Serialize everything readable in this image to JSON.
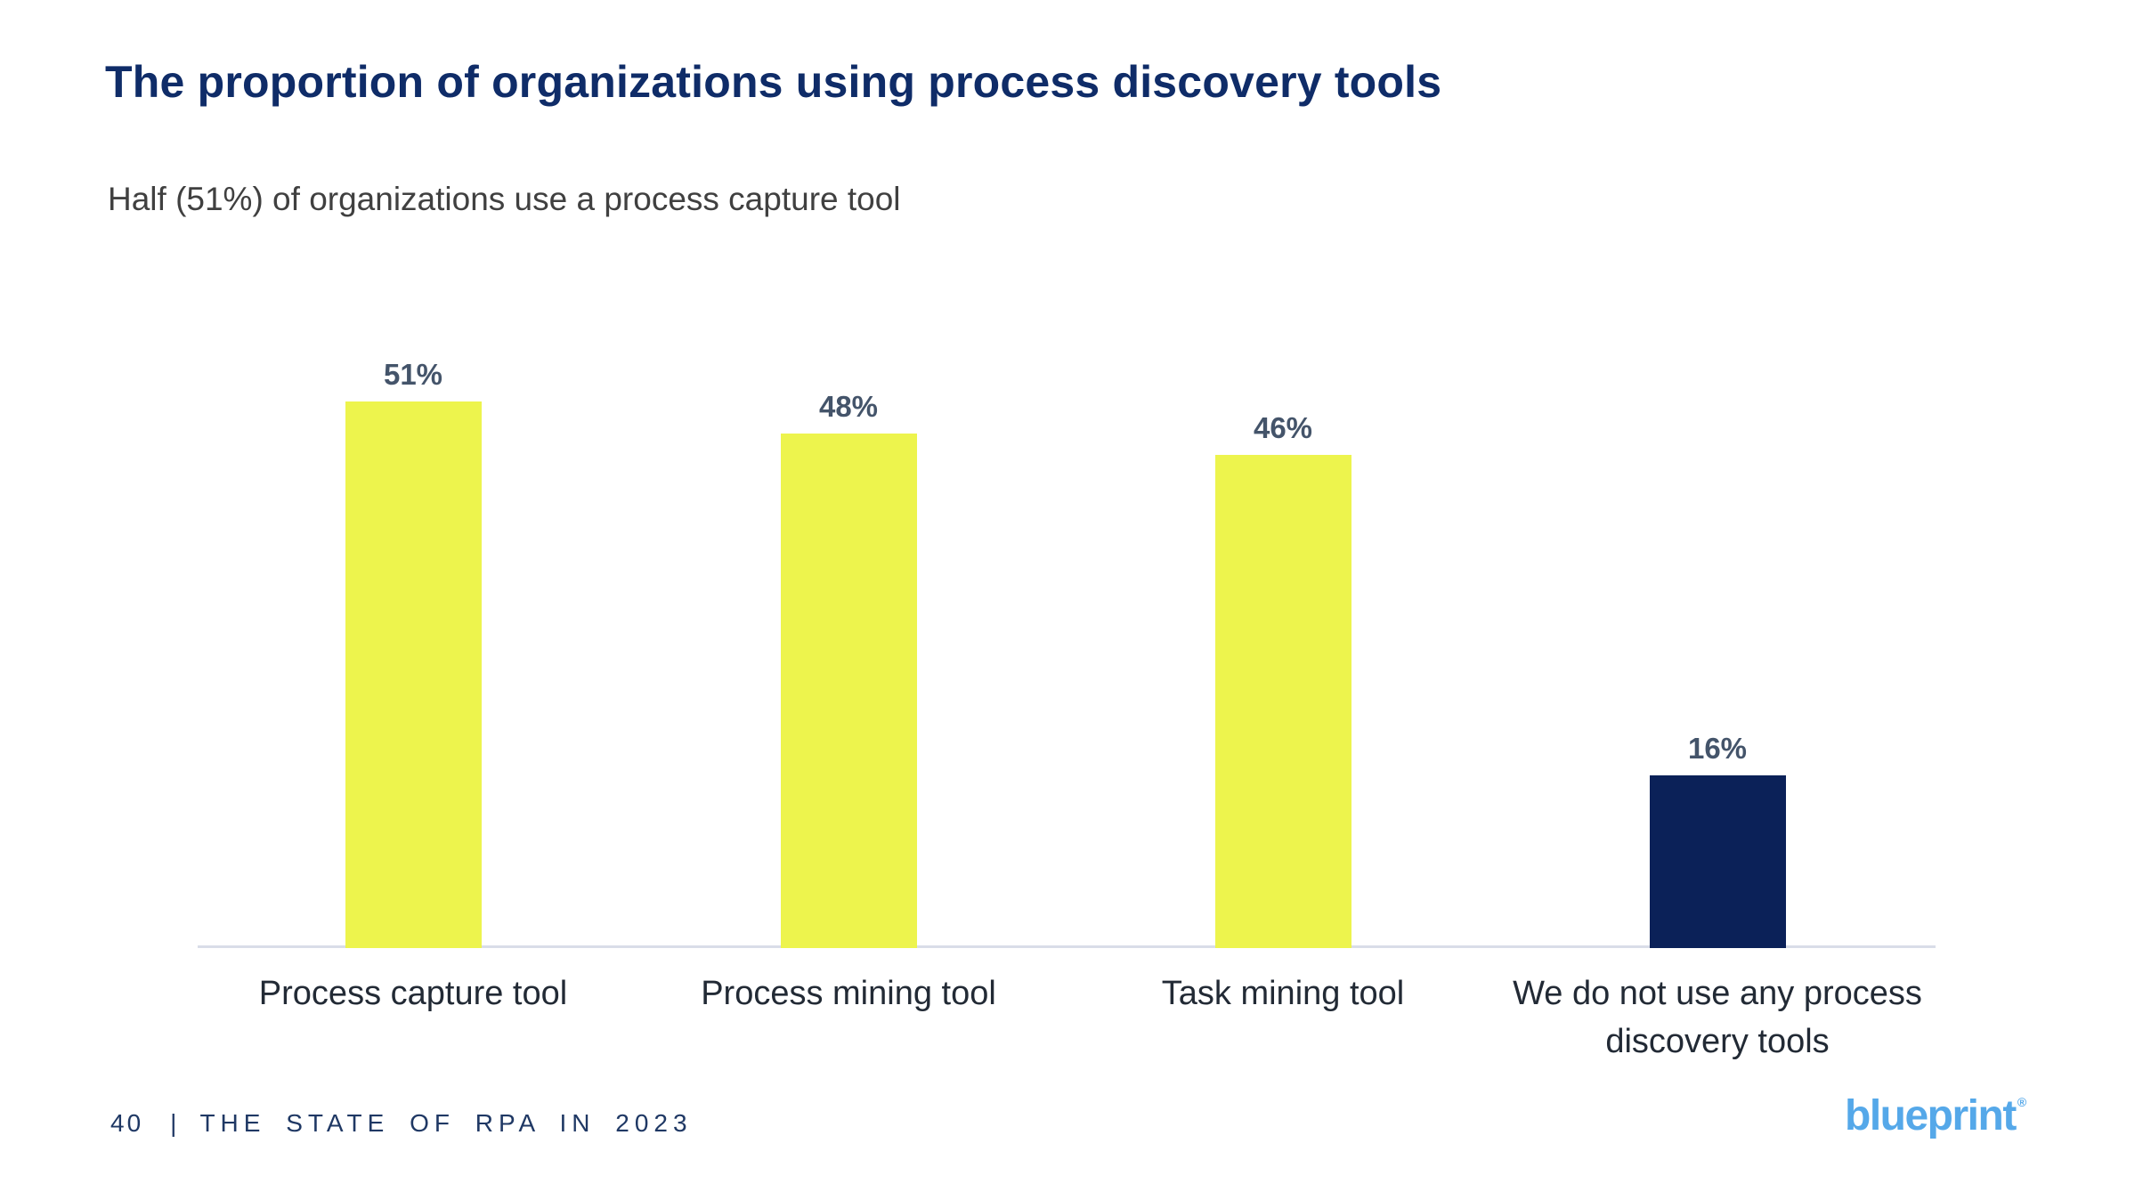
{
  "slide": {
    "footer": {
      "page_number": "40",
      "separator": "|",
      "report_title": "THE STATE OF RPA IN 2023"
    },
    "logo": {
      "text": "blueprint",
      "registered_mark": "®"
    }
  },
  "colors": {
    "title": "#0F2C68",
    "subtitle": "#404040",
    "percent_label": "#44546A",
    "category_label": "#222A35",
    "bar_yellow": "#EDF44D",
    "bar_navy": "#0B2158",
    "axis_line": "#D9DDE8",
    "footer": "#1F3864",
    "logo_blue": "#55A8E9"
  },
  "chart_data": {
    "type": "bar",
    "title": "The proportion of organizations using process discovery tools",
    "subtitle": "Half (51%) of organizations use a process capture tool",
    "categories": [
      "Process capture tool",
      "Process mining tool",
      "Task mining tool",
      "We do not use any process discovery tools"
    ],
    "values": [
      51,
      48,
      46,
      16
    ],
    "value_labels": [
      "51%",
      "48%",
      "46%",
      "16%"
    ],
    "bar_colors": [
      "#EDF44D",
      "#EDF44D",
      "#EDF44D",
      "#0B2158"
    ],
    "xlabel": "",
    "ylabel": "",
    "ylim": [
      0,
      55
    ],
    "unit": "percent",
    "grid": false,
    "legend": false,
    "orientation": "vertical",
    "value_labels_position": "above-bars",
    "y_axis_shown": false,
    "x_axis_line_shown": true
  }
}
